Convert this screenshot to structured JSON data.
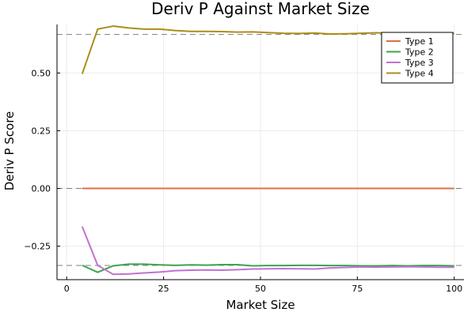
{
  "chart_data": {
    "type": "line",
    "title": "Deriv P Against Market Size",
    "xlabel": "Market Size",
    "ylabel": "Deriv P Score",
    "xlim": [
      -2.5,
      102.5
    ],
    "ylim": [
      -0.395,
      0.71
    ],
    "xticks": [
      0,
      25,
      50,
      75,
      100
    ],
    "xtick_labels": [
      "0",
      "25",
      "50",
      "75",
      "100"
    ],
    "yticks": [
      -0.25,
      0.0,
      0.25,
      0.5
    ],
    "ytick_labels": [
      "−0.25",
      "0.00",
      "0.25",
      "0.50"
    ],
    "grid": true,
    "legend_position": "top-right",
    "reference_lines": [
      0.6667,
      0.0,
      -0.3333
    ],
    "x": [
      4,
      8,
      12,
      16,
      20,
      24,
      28,
      32,
      36,
      40,
      44,
      48,
      52,
      56,
      60,
      64,
      68,
      72,
      76,
      80,
      84,
      88,
      92,
      96,
      100
    ],
    "series": [
      {
        "name": "Type 1",
        "color": "#e26f46",
        "values": [
          0,
          0,
          0,
          0,
          0,
          0,
          0,
          0,
          0,
          0,
          0,
          0,
          0,
          0,
          0,
          0,
          0,
          0,
          0,
          0,
          0,
          0,
          0,
          0,
          0
        ]
      },
      {
        "name": "Type 2",
        "color": "#3da44d",
        "values": [
          -0.333,
          -0.363,
          -0.335,
          -0.328,
          -0.328,
          -0.331,
          -0.333,
          -0.331,
          -0.332,
          -0.33,
          -0.33,
          -0.335,
          -0.334,
          -0.334,
          -0.333,
          -0.333,
          -0.334,
          -0.334,
          -0.335,
          -0.335,
          -0.334,
          -0.335,
          -0.334,
          -0.334,
          -0.335
        ]
      },
      {
        "name": "Type 3",
        "color": "#c271d2",
        "values": [
          -0.165,
          -0.333,
          -0.372,
          -0.37,
          -0.366,
          -0.362,
          -0.356,
          -0.354,
          -0.353,
          -0.354,
          -0.352,
          -0.349,
          -0.348,
          -0.347,
          -0.348,
          -0.349,
          -0.344,
          -0.342,
          -0.34,
          -0.341,
          -0.34,
          -0.339,
          -0.34,
          -0.341,
          -0.341
        ]
      },
      {
        "name": "Type 4",
        "color": "#ac8d18",
        "values": [
          0.496,
          0.69,
          0.703,
          0.695,
          0.69,
          0.69,
          0.684,
          0.68,
          0.68,
          0.679,
          0.677,
          0.678,
          0.675,
          0.672,
          0.671,
          0.673,
          0.669,
          0.67,
          0.672,
          0.674,
          0.671,
          0.673,
          0.67,
          0.672,
          0.671
        ]
      }
    ]
  }
}
